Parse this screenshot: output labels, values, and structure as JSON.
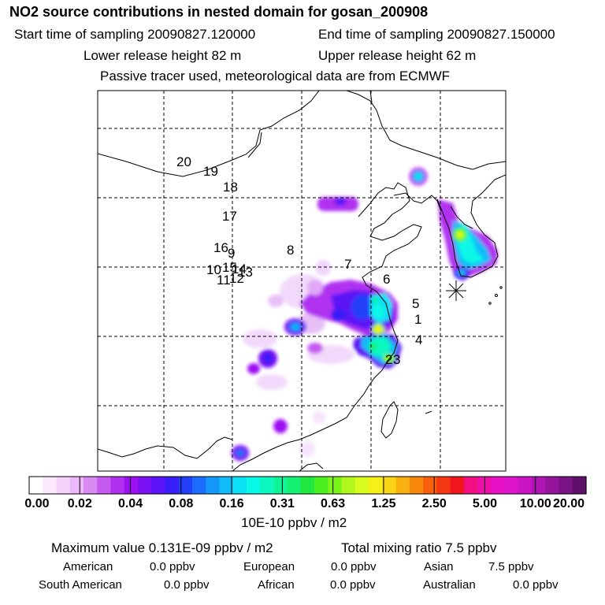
{
  "header": {
    "title": "NO2 source contributions in nested domain for gosan_200908",
    "start_time": "Start time of sampling 20090827.120000",
    "end_time": "End time of sampling 20090827.150000",
    "lower_release": "Lower release height   82 m",
    "upper_release": "Upper release height   62 m",
    "tracer_note": "Passive tracer used, meteorological data are from ECMWF"
  },
  "map": {
    "release_numbers": [
      "20",
      "19",
      "18",
      "17",
      "16",
      "9",
      "8",
      "7",
      "10",
      "15",
      "14",
      "13",
      "11",
      "12",
      "6",
      "5",
      "1",
      "4",
      "2",
      "3"
    ],
    "receptor_marker": "asterisk"
  },
  "colorbar": {
    "tick_labels": [
      "0.00",
      "0.02",
      "0.04",
      "0.08",
      "0.16",
      "0.31",
      "0.63",
      "1.25",
      "2.50",
      "5.00",
      "10.00",
      "20.00"
    ],
    "unit": "10E-10 ppbv / m2",
    "colors": [
      "#ffffff",
      "#fbe8fd",
      "#f5d2fb",
      "#ecb8f9",
      "#d88af3",
      "#c65af0",
      "#b030f0",
      "#9d10f2",
      "#7a10f4",
      "#5c15f6",
      "#3a1ef8",
      "#2240fa",
      "#1b6cfa",
      "#1596fa",
      "#10bcf8",
      "#0ce0f4",
      "#0af8e8",
      "#0cf8c0",
      "#10f498",
      "#14f070",
      "#20e840",
      "#4cf020",
      "#7cf41c",
      "#b0f81c",
      "#d8fa1c",
      "#f6f018",
      "#f8d414",
      "#f8b010",
      "#f8880e",
      "#f8600e",
      "#f43814",
      "#f0141c",
      "#f01080",
      "#ec10a8",
      "#e810c4",
      "#dc14cc",
      "#c814c4",
      "#b014b4",
      "#94149c",
      "#7a1484",
      "#5e106a"
    ]
  },
  "summary": {
    "max_value": "Maximum value  0.131E-09 ppbv / m2",
    "total_mixing": "Total mixing ratio        7.5 ppbv",
    "american": "American",
    "american_val": "0.0 ppbv",
    "european": "European",
    "european_val": "0.0 ppbv",
    "asian": "Asian",
    "asian_val": "7.5 ppbv",
    "south_american": "South American",
    "south_american_val": "0.0 ppbv",
    "african": "African",
    "african_val": "0.0 ppbv",
    "australian": "Australian",
    "australian_val": "0.0 ppbv"
  }
}
